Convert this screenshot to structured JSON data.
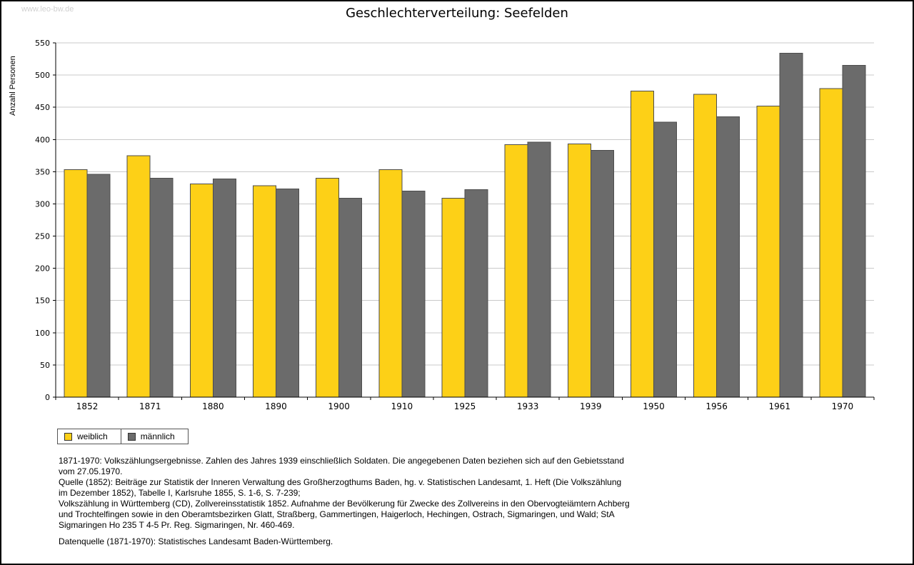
{
  "page": {
    "watermark": "www.leo-bw.de",
    "title": "Geschlechterverteilung: Seefelden"
  },
  "chart_data": {
    "type": "bar",
    "title": "Geschlechterverteilung: Seefelden",
    "ylabel": "Anzahl Personen",
    "xlabel": "",
    "ylim": [
      0,
      550
    ],
    "ytick_interval": 50,
    "grid": true,
    "legend_position": "bottom-left",
    "axis_color": "#000000",
    "grid_color": "#C9C9C9",
    "bar_border_color": "#4D4D4D",
    "categories": [
      "1852",
      "1871",
      "1880",
      "1890",
      "1900",
      "1910",
      "1925",
      "1933",
      "1939",
      "1950",
      "1956",
      "1961",
      "1970"
    ],
    "series": [
      {
        "name": "weiblich",
        "color": "#FDD017",
        "values": [
          353,
          375,
          331,
          328,
          340,
          353,
          309,
          392,
          393,
          475,
          470,
          452,
          479
        ]
      },
      {
        "name": "männlich",
        "color": "#6B6B6B",
        "values": [
          346,
          340,
          339,
          323,
          309,
          320,
          322,
          396,
          383,
          427,
          435,
          534,
          515
        ]
      }
    ]
  },
  "footnotes": [
    "1871-1970: Volkszählungsergebnisse. Zahlen des Jahres 1939 einschließlich Soldaten. Die angegebenen Daten beziehen sich auf den Gebietsstand vom 27.05.1970.",
    "Quelle (1852): Beiträge zur Statistik der Inneren Verwaltung des Großherzogthums Baden, hg. v. Statistischen Landesamt, 1. Heft (Die Volkszählung im Dezember 1852), Tabelle I, Karlsruhe 1855, S. 1-6, S. 7-239;",
    "Volkszählung in Württemberg (CD), Zollvereinsstatistik 1852. Aufnahme der Bevölkerung für Zwecke des Zollvereins in den Obervogteiämtern Achberg und Trochtelfingen sowie in den Oberamtsbezirken Glatt, Straßberg, Gammertingen, Haigerloch, Hechingen, Ostrach, Sigmaringen, und Wald; StA Sigmaringen Ho 235 T 4-5 Pr. Reg. Sigmaringen, Nr. 460-469.",
    "Datenquelle (1871-1970): Statistisches Landesamt Baden-Württemberg."
  ]
}
